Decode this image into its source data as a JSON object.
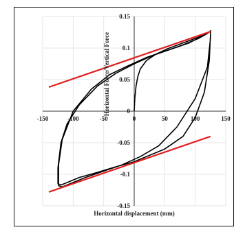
{
  "chart_data": {
    "type": "line",
    "title": "",
    "xlabel": "Horizontal displacement (mm)",
    "ylabel": "Horizontal Force/Vertical Force",
    "xlim": [
      -150,
      150
    ],
    "ylim": [
      -0.15,
      0.15
    ],
    "x_ticks": [
      -150,
      -100,
      -50,
      0,
      50,
      100,
      150
    ],
    "y_ticks": [
      -0.15,
      -0.1,
      -0.05,
      0,
      0.05,
      0.1,
      0.15
    ],
    "x_tick_labels": [
      "-150",
      "-100",
      "-50",
      "0",
      "50",
      "100",
      "150"
    ],
    "y_tick_labels": [
      "-0.15",
      "-0.1",
      "-0.05",
      "0",
      "0.05",
      "0.1",
      "0.15"
    ],
    "grid": true,
    "series": [
      {
        "color": "#000000",
        "x": [
          0,
          1,
          3,
          6,
          10,
          20,
          35,
          55,
          80,
          105,
          120,
          125,
          125,
          123,
          115,
          100,
          80,
          50,
          20,
          0,
          -30,
          -60,
          -90,
          -110,
          -120,
          -125,
          -125,
          -120,
          -110,
          -90,
          -60,
          -30,
          0,
          30,
          60,
          90,
          110,
          122,
          125,
          125,
          120,
          100,
          70,
          40,
          10,
          -20,
          -50,
          -80,
          -105,
          -118,
          -124,
          -124,
          -118,
          -100,
          -70,
          -40,
          -10,
          20,
          50,
          80,
          105,
          118,
          124,
          126
        ],
        "y": [
          0,
          0.02,
          0.04,
          0.055,
          0.067,
          0.08,
          0.09,
          0.099,
          0.108,
          0.117,
          0.123,
          0.127,
          0.12,
          0.08,
          0.03,
          -0.01,
          -0.04,
          -0.06,
          -0.072,
          -0.08,
          -0.088,
          -0.097,
          -0.105,
          -0.113,
          -0.117,
          -0.115,
          -0.09,
          -0.05,
          -0.02,
          0.01,
          0.04,
          0.06,
          0.075,
          0.088,
          0.098,
          0.108,
          0.118,
          0.125,
          0.127,
          0.115,
          0.07,
          0.02,
          -0.025,
          -0.055,
          -0.072,
          -0.085,
          -0.095,
          -0.105,
          -0.115,
          -0.12,
          -0.118,
          -0.085,
          -0.045,
          0.0,
          0.035,
          0.058,
          0.072,
          0.085,
          0.095,
          0.105,
          0.115,
          0.122,
          0.126,
          0.128
        ]
      },
      {
        "color": "#e02020",
        "x": [
          -140,
          125
        ],
        "y": [
          0.038,
          0.126
        ]
      },
      {
        "color": "#e02020",
        "x": [
          -140,
          125
        ],
        "y": [
          -0.128,
          -0.04
        ]
      }
    ]
  }
}
